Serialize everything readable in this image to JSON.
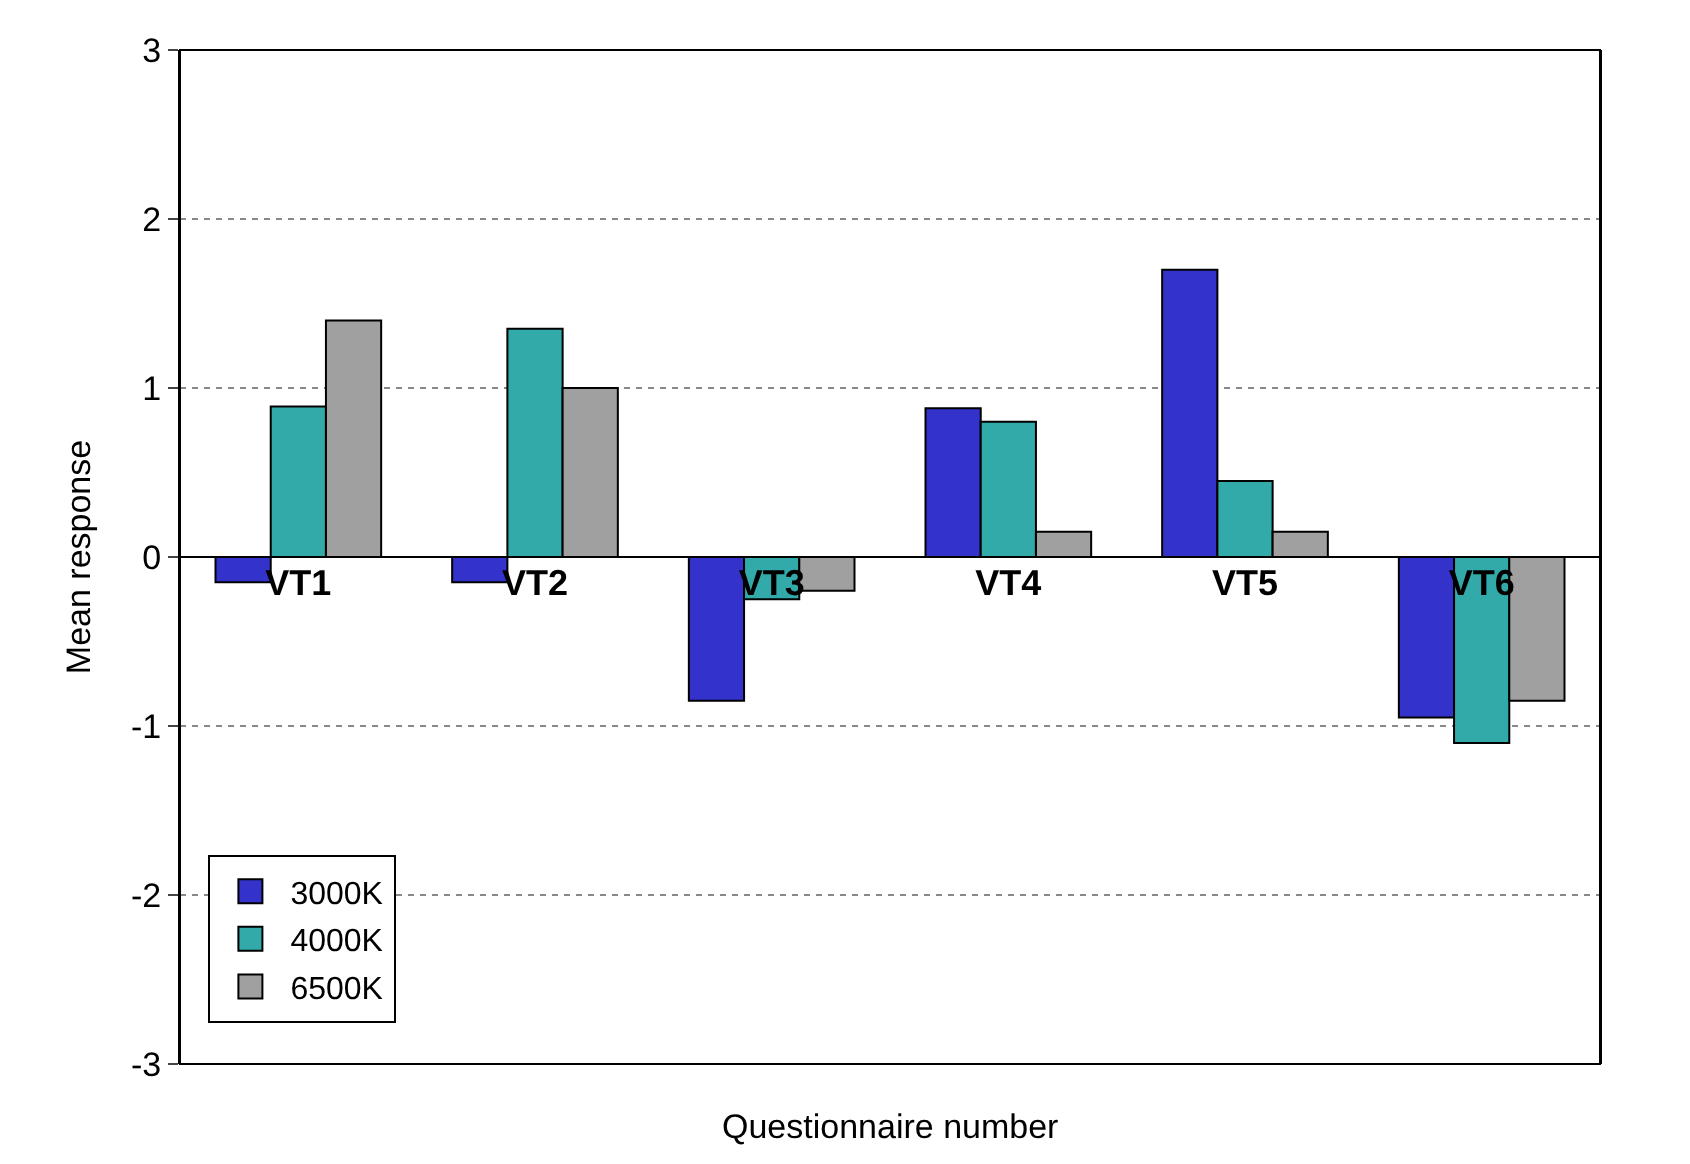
{
  "chart_data": {
    "type": "bar",
    "xlabel": "Questionnaire number",
    "ylabel": "Mean response",
    "categories": [
      "VT1",
      "VT2",
      "VT3",
      "VT4",
      "VT5",
      "VT6"
    ],
    "series": [
      {
        "name": "3000K",
        "color": "#3333cc",
        "values": [
          -0.15,
          -0.15,
          -0.85,
          0.88,
          1.7,
          -0.95
        ]
      },
      {
        "name": "4000K",
        "color": "#33aaaa",
        "values": [
          0.89,
          1.35,
          -0.25,
          0.8,
          0.45,
          -1.1
        ]
      },
      {
        "name": "6500K",
        "color": "#a0a0a0",
        "values": [
          1.4,
          1.0,
          -0.2,
          0.15,
          0.15,
          -0.85
        ]
      }
    ],
    "ylim": [
      -3,
      3
    ],
    "yticks": [
      -3,
      -2,
      -1,
      0,
      1,
      2,
      3
    ],
    "grid": "y",
    "legend": "bottom left"
  }
}
